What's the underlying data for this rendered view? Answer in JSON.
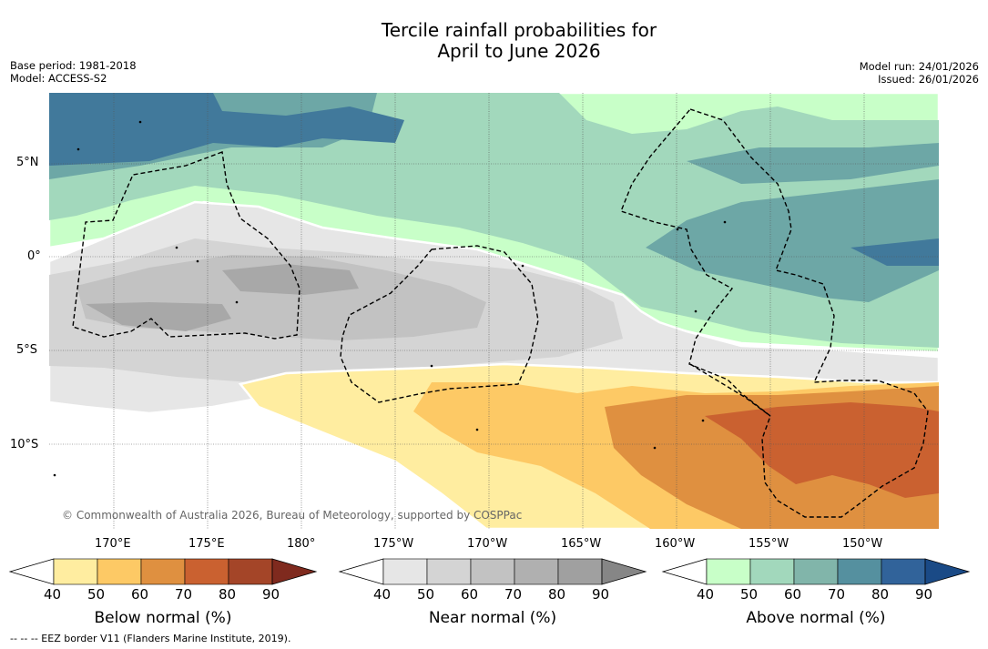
{
  "title_line1": "Tercile rainfall probabilities for",
  "title_line2": "April to June 2026",
  "base_period": "Base period: 1981-2018",
  "model": "Model: ACCESS-S2",
  "model_run": "Model run: 24/01/2026",
  "issued": "Issued: 26/01/2026",
  "lat_labels": [
    "5°N",
    "0°",
    "5°S",
    "10°S"
  ],
  "lon_labels": [
    "170°E",
    "175°E",
    "180°",
    "175°W",
    "170°W",
    "165°W",
    "160°W",
    "155°W",
    "150°W"
  ],
  "credit": "© Commonwealth of Australia 2026, Bureau of Meteorology, supported by COSPPac",
  "colorbars": [
    {
      "label": "Below normal (%)",
      "ticks": [
        "40",
        "50",
        "60",
        "70",
        "80",
        "90"
      ],
      "colors": [
        "#ffffff",
        "#ffeda0",
        "#fdc965",
        "#df9040",
        "#ca6130",
        "#a44528",
        "#7f2a1e"
      ]
    },
    {
      "label": "Near normal (%)",
      "ticks": [
        "40",
        "50",
        "60",
        "70",
        "80",
        "90"
      ],
      "colors": [
        "#ffffff",
        "#e6e6e6",
        "#d4d4d4",
        "#c2c2c2",
        "#b0b0b0",
        "#a0a0a0",
        "#868686"
      ]
    },
    {
      "label": "Above normal (%)",
      "ticks": [
        "40",
        "50",
        "60",
        "70",
        "80",
        "90"
      ],
      "colors": [
        "#ffffff",
        "#c8ffc8",
        "#a2d8bc",
        "#81b5aa",
        "#55909f",
        "#31639a",
        "#1a4a86"
      ]
    }
  ],
  "footer": "--  --  -- EEZ border V11 (Flanders Marine Institute, 2019).",
  "map_colors": {
    "above_40": "#c8ffc8",
    "above_50": "#a2d8bc",
    "above_60": "#6da7a6",
    "above_70": "#41799b",
    "near_40": "#e6e6e6",
    "near_50": "#d4d4d4",
    "near_60": "#c2c2c2",
    "near_70": "#a8a8a8",
    "below_40": "#ffeda0",
    "below_50": "#fdc965",
    "below_60": "#df9040",
    "below_70": "#ca6130"
  }
}
